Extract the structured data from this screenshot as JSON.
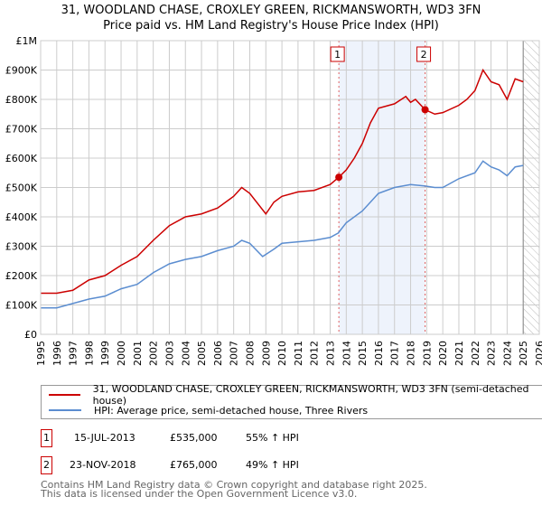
{
  "chart_data": {
    "type": "line",
    "title": "31, WOODLAND CHASE, CROXLEY GREEN, RICKMANSWORTH, WD3 3FN",
    "subtitle": "Price paid vs. HM Land Registry's House Price Index (HPI)",
    "xlim": [
      1995,
      2026
    ],
    "ylim": [
      0,
      1000000
    ],
    "x_ticks": [
      "1995",
      "1996",
      "1997",
      "1998",
      "1999",
      "2000",
      "2001",
      "2002",
      "2003",
      "2004",
      "2005",
      "2006",
      "2007",
      "2008",
      "2009",
      "2010",
      "2011",
      "2012",
      "2013",
      "2014",
      "2015",
      "2016",
      "2017",
      "2018",
      "2019",
      "2020",
      "2021",
      "2022",
      "2023",
      "2024",
      "2025",
      "2026"
    ],
    "y_ticks": [
      {
        "v": 0,
        "label": "£0"
      },
      {
        "v": 100000,
        "label": "£100K"
      },
      {
        "v": 200000,
        "label": "£200K"
      },
      {
        "v": 300000,
        "label": "£300K"
      },
      {
        "v": 400000,
        "label": "£400K"
      },
      {
        "v": 500000,
        "label": "£500K"
      },
      {
        "v": 600000,
        "label": "£600K"
      },
      {
        "v": 700000,
        "label": "£700K"
      },
      {
        "v": 800000,
        "label": "£800K"
      },
      {
        "v": 900000,
        "label": "£900K"
      },
      {
        "v": 1000000,
        "label": "£1M"
      }
    ],
    "grid": true,
    "shaded_range": [
      2013.54,
      2018.9
    ],
    "forecast_hatch_from": 2025.0,
    "series": [
      {
        "name": "31, WOODLAND CHASE, CROXLEY GREEN, RICKMANSWORTH, WD3 3FN (semi-detached house)",
        "color": "#cc0000",
        "x": [
          1995,
          1996,
          1997,
          1998,
          1999,
          2000,
          2001,
          2002,
          2003,
          2004,
          2005,
          2006,
          2007,
          2007.5,
          2008,
          2009,
          2009.5,
          2010,
          2011,
          2012,
          2013,
          2013.54,
          2014,
          2014.5,
          2015,
          2015.5,
          2016,
          2017,
          2017.7,
          2018,
          2018.3,
          2018.9,
          2019.5,
          2020,
          2021,
          2021.5,
          2022,
          2022.5,
          2023,
          2023.5,
          2024,
          2024.5,
          2025
        ],
        "y": [
          140000,
          140000,
          150000,
          185000,
          200000,
          235000,
          265000,
          320000,
          370000,
          400000,
          410000,
          430000,
          470000,
          500000,
          480000,
          410000,
          450000,
          470000,
          485000,
          490000,
          510000,
          535000,
          560000,
          600000,
          650000,
          720000,
          770000,
          785000,
          810000,
          790000,
          800000,
          765000,
          750000,
          755000,
          780000,
          800000,
          830000,
          900000,
          860000,
          850000,
          800000,
          870000,
          860000
        ]
      },
      {
        "name": "HPI: Average price, semi-detached house, Three Rivers",
        "color": "#5b8dd0",
        "x": [
          1995,
          1996,
          1997,
          1998,
          1999,
          2000,
          2001,
          2002,
          2003,
          2004,
          2005,
          2006,
          2007,
          2007.5,
          2008,
          2008.8,
          2009.5,
          2010,
          2011,
          2012,
          2013,
          2013.5,
          2014,
          2015,
          2016,
          2017,
          2018,
          2018.9,
          2019.5,
          2020,
          2021,
          2022,
          2022.5,
          2023,
          2023.5,
          2024,
          2024.5,
          2025
        ],
        "y": [
          90000,
          90000,
          105000,
          120000,
          130000,
          155000,
          170000,
          210000,
          240000,
          255000,
          265000,
          285000,
          300000,
          320000,
          310000,
          265000,
          290000,
          310000,
          315000,
          320000,
          330000,
          345000,
          380000,
          420000,
          480000,
          500000,
          510000,
          505000,
          500000,
          500000,
          530000,
          550000,
          590000,
          570000,
          560000,
          540000,
          570000,
          575000
        ]
      }
    ],
    "sales": [
      {
        "id": "1",
        "x": 2013.54,
        "y": 535000,
        "date": "15-JUL-2013",
        "price": "£535,000",
        "hpi": "55% ↑ HPI"
      },
      {
        "id": "2",
        "x": 2018.9,
        "y": 765000,
        "date": "23-NOV-2018",
        "price": "£765,000",
        "hpi": "49% ↑ HPI"
      }
    ]
  },
  "footer": {
    "line1": "Contains HM Land Registry data © Crown copyright and database right 2025.",
    "line2": "This data is licensed under the Open Government Licence v3.0."
  }
}
